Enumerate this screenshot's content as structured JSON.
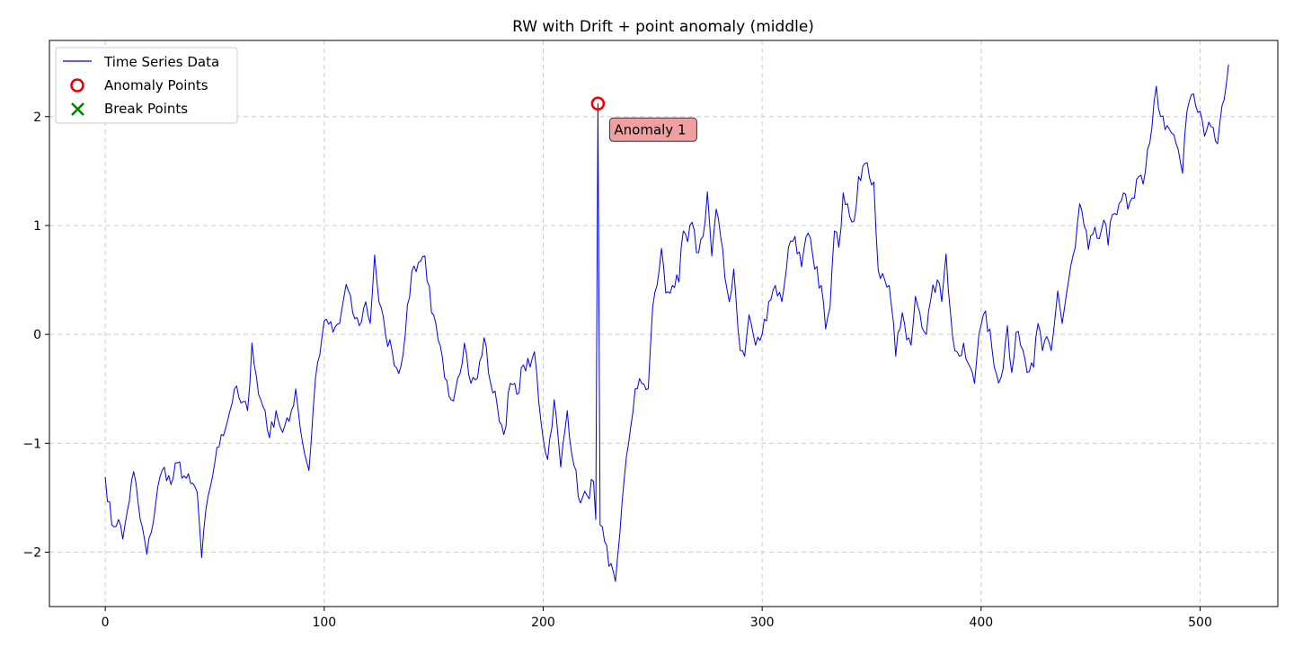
{
  "chart_data": {
    "type": "line",
    "title": "RW with Drift + point anomaly (middle)",
    "xlabel": "",
    "ylabel": "",
    "xlim": [
      -25.5,
      535.5
    ],
    "ylim": [
      -2.5,
      2.7
    ],
    "x_ticks": [
      0,
      100,
      200,
      300,
      400,
      500
    ],
    "y_ticks": [
      -2,
      -1,
      0,
      1,
      2
    ],
    "x_tick_labels": [
      "0",
      "100",
      "200",
      "300",
      "400",
      "500"
    ],
    "y_tick_labels": [
      "−2",
      "−1",
      "0",
      "1",
      "2"
    ],
    "grid": true,
    "legend": {
      "placement": "top-left",
      "entries": [
        {
          "label": "Time Series Data",
          "marker": "line",
          "color": "#0000ee"
        },
        {
          "label": "Anomaly Points",
          "marker": "open-circle",
          "color": "#ee0000"
        },
        {
          "label": "Break Points",
          "marker": "x",
          "color": "#008000"
        }
      ]
    },
    "series": [
      {
        "name": "Time Series Data",
        "color": "#0000ee",
        "x_start": 0,
        "x_step": 1,
        "anchors": [
          [
            0,
            -1.31
          ],
          [
            3,
            -1.75
          ],
          [
            6,
            -1.7
          ],
          [
            8,
            -1.88
          ],
          [
            10,
            -1.63
          ],
          [
            13,
            -1.26
          ],
          [
            16,
            -1.7
          ],
          [
            19,
            -2.02
          ],
          [
            21,
            -1.82
          ],
          [
            24,
            -1.4
          ],
          [
            27,
            -1.22
          ],
          [
            30,
            -1.38
          ],
          [
            33,
            -1.18
          ],
          [
            36,
            -1.3
          ],
          [
            39,
            -1.37
          ],
          [
            42,
            -1.45
          ],
          [
            44,
            -2.05
          ],
          [
            47,
            -1.48
          ],
          [
            50,
            -1.18
          ],
          [
            53,
            -0.92
          ],
          [
            56,
            -0.78
          ],
          [
            59,
            -0.5
          ],
          [
            62,
            -0.63
          ],
          [
            65,
            -0.7
          ],
          [
            67,
            -0.08
          ],
          [
            70,
            -0.55
          ],
          [
            73,
            -0.7
          ],
          [
            75,
            -0.95
          ],
          [
            78,
            -0.7
          ],
          [
            81,
            -0.9
          ],
          [
            84,
            -0.8
          ],
          [
            87,
            -0.5
          ],
          [
            90,
            -0.98
          ],
          [
            93,
            -1.25
          ],
          [
            96,
            -0.4
          ],
          [
            99,
            -0.02
          ],
          [
            101,
            0.14
          ],
          [
            104,
            0.02
          ],
          [
            107,
            0.1
          ],
          [
            110,
            0.46
          ],
          [
            113,
            0.2
          ],
          [
            116,
            0.08
          ],
          [
            119,
            0.3
          ],
          [
            121,
            0.1
          ],
          [
            123,
            0.73
          ],
          [
            125,
            0.3
          ],
          [
            128,
            0.0
          ],
          [
            131,
            -0.15
          ],
          [
            134,
            -0.36
          ],
          [
            137,
            0.0
          ],
          [
            140,
            0.58
          ],
          [
            143,
            0.66
          ],
          [
            146,
            0.72
          ],
          [
            149,
            0.2
          ],
          [
            152,
            -0.05
          ],
          [
            155,
            -0.4
          ],
          [
            158,
            -0.6
          ],
          [
            161,
            -0.4
          ],
          [
            164,
            -0.08
          ],
          [
            167,
            -0.45
          ],
          [
            170,
            -0.4
          ],
          [
            173,
            -0.03
          ],
          [
            176,
            -0.45
          ],
          [
            179,
            -0.65
          ],
          [
            182,
            -0.92
          ],
          [
            185,
            -0.45
          ],
          [
            188,
            -0.55
          ],
          [
            191,
            -0.28
          ],
          [
            194,
            -0.3
          ],
          [
            196,
            -0.16
          ],
          [
            199,
            -0.8
          ],
          [
            202,
            -1.15
          ],
          [
            205,
            -0.6
          ],
          [
            208,
            -1.22
          ],
          [
            211,
            -0.7
          ],
          [
            214,
            -1.2
          ],
          [
            217,
            -1.55
          ],
          [
            220,
            -1.48
          ],
          [
            223,
            -1.35
          ],
          [
            224,
            -1.7
          ],
          [
            225,
            2.12
          ],
          [
            226,
            -1.75
          ],
          [
            228,
            -1.9
          ],
          [
            230,
            -2.13
          ],
          [
            233,
            -2.27
          ],
          [
            236,
            -1.55
          ],
          [
            239,
            -1.0
          ],
          [
            242,
            -0.5
          ],
          [
            245,
            -0.45
          ],
          [
            248,
            -0.5
          ],
          [
            250,
            0.25
          ],
          [
            252,
            0.45
          ],
          [
            254,
            0.79
          ],
          [
            256,
            0.38
          ],
          [
            259,
            0.45
          ],
          [
            262,
            0.48
          ],
          [
            264,
            0.95
          ],
          [
            266,
            0.85
          ],
          [
            268,
            1.03
          ],
          [
            270,
            0.75
          ],
          [
            273,
            0.9
          ],
          [
            275,
            1.31
          ],
          [
            277,
            0.72
          ],
          [
            279,
            1.15
          ],
          [
            281,
            0.9
          ],
          [
            283,
            0.52
          ],
          [
            285,
            0.3
          ],
          [
            287,
            0.6
          ],
          [
            290,
            -0.15
          ],
          [
            292,
            -0.2
          ],
          [
            294,
            0.18
          ],
          [
            297,
            -0.1
          ],
          [
            300,
            0.0
          ],
          [
            303,
            0.3
          ],
          [
            306,
            0.45
          ],
          [
            309,
            0.3
          ],
          [
            312,
            0.8
          ],
          [
            315,
            0.9
          ],
          [
            318,
            0.62
          ],
          [
            321,
            0.93
          ],
          [
            324,
            0.6
          ],
          [
            327,
            0.45
          ],
          [
            329,
            0.05
          ],
          [
            331,
            0.25
          ],
          [
            333,
            0.95
          ],
          [
            335,
            0.8
          ],
          [
            337,
            1.3
          ],
          [
            339,
            1.2
          ],
          [
            342,
            1.04
          ],
          [
            344,
            1.45
          ],
          [
            347,
            1.57
          ],
          [
            349,
            1.44
          ],
          [
            351,
            1.4
          ],
          [
            353,
            0.59
          ],
          [
            356,
            0.5
          ],
          [
            358,
            0.45
          ],
          [
            360,
            0.1
          ],
          [
            361,
            -0.2
          ],
          [
            364,
            0.2
          ],
          [
            366,
            -0.05
          ],
          [
            368,
            -0.1
          ],
          [
            370,
            0.35
          ],
          [
            372,
            0.2
          ],
          [
            375,
            0.0
          ],
          [
            377,
            0.32
          ],
          [
            380,
            0.5
          ],
          [
            382,
            0.3
          ],
          [
            384,
            0.74
          ],
          [
            386,
            0.2
          ],
          [
            388,
            -0.15
          ],
          [
            390,
            -0.2
          ],
          [
            392,
            -0.08
          ],
          [
            395,
            -0.3
          ],
          [
            397,
            -0.45
          ],
          [
            399,
            0.0
          ],
          [
            401,
            0.18
          ],
          [
            404,
            0.05
          ],
          [
            406,
            -0.3
          ],
          [
            409,
            -0.4
          ],
          [
            412,
            0.08
          ],
          [
            414,
            -0.35
          ],
          [
            416,
            0.02
          ],
          [
            418,
            -0.1
          ],
          [
            421,
            -0.35
          ],
          [
            424,
            -0.3
          ],
          [
            426,
            0.1
          ],
          [
            428,
            -0.15
          ],
          [
            430,
            -0.02
          ],
          [
            432,
            -0.15
          ],
          [
            435,
            0.4
          ],
          [
            437,
            0.1
          ],
          [
            440,
            0.5
          ],
          [
            443,
            0.8
          ],
          [
            445,
            1.2
          ],
          [
            447,
            1.0
          ],
          [
            449,
            0.78
          ],
          [
            451,
            0.92
          ],
          [
            454,
            0.88
          ],
          [
            456,
            1.05
          ],
          [
            458,
            0.82
          ],
          [
            460,
            1.1
          ],
          [
            463,
            1.2
          ],
          [
            465,
            1.3
          ],
          [
            467,
            1.15
          ],
          [
            470,
            1.25
          ],
          [
            472,
            1.45
          ],
          [
            474,
            1.38
          ],
          [
            476,
            1.7
          ],
          [
            478,
            1.9
          ],
          [
            480,
            2.28
          ],
          [
            482,
            2.0
          ],
          [
            484,
            1.88
          ],
          [
            487,
            1.85
          ],
          [
            490,
            1.7
          ],
          [
            492,
            1.48
          ],
          [
            494,
            2.05
          ],
          [
            496,
            2.2
          ],
          [
            498,
            2.1
          ],
          [
            500,
            2.05
          ],
          [
            502,
            1.82
          ],
          [
            504,
            1.95
          ],
          [
            506,
            1.9
          ],
          [
            508,
            1.75
          ],
          [
            510,
            2.1
          ],
          [
            512,
            2.3
          ],
          [
            513,
            2.48
          ]
        ]
      }
    ],
    "anomaly_points": [
      {
        "x": 225,
        "y": 2.12,
        "label": "Anomaly 1"
      }
    ],
    "break_points": [],
    "annotations": [
      {
        "text": "Anomaly 1",
        "x": 225,
        "y": 2.12,
        "box_color": "#f0a0a0"
      }
    ]
  }
}
